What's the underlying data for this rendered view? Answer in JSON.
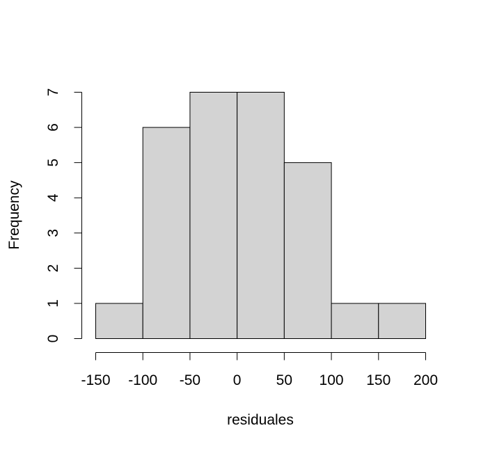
{
  "chart_data": {
    "type": "bar",
    "subtype": "histogram",
    "title": "",
    "xlabel": "residuales",
    "ylabel": "Frequency",
    "breaks": [
      -150,
      -100,
      -50,
      0,
      50,
      100,
      150,
      200
    ],
    "values": [
      1,
      6,
      7,
      7,
      5,
      1,
      1
    ],
    "xlim": [
      -150,
      200
    ],
    "ylim": [
      0,
      7
    ],
    "x_ticks": [
      "-150",
      "-100",
      "-50",
      "0",
      "50",
      "100",
      "150",
      "200"
    ],
    "y_ticks": [
      "0",
      "1",
      "2",
      "3",
      "4",
      "5",
      "6",
      "7"
    ],
    "grid": false,
    "legend": "none",
    "bar_fill": "#d3d3d3",
    "bar_stroke": "#000000"
  }
}
